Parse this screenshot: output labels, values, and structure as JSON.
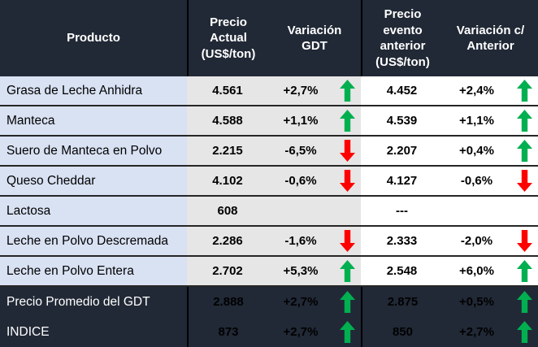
{
  "chart_data": {
    "type": "table",
    "columns": [
      "Producto",
      "Precio Actual (US$/ton)",
      "Variación GDT",
      "Precio evento anterior (US$/ton)",
      "Variación c/ Anterior"
    ],
    "rows": [
      {
        "product": "Grasa de Leche Anhidra",
        "precio_actual": "4.561",
        "variacion_gdt": "+2,7%",
        "gdt_arrow": "up",
        "precio_evento": "4.452",
        "variacion_anterior": "+2,4%",
        "anterior_arrow": "up"
      },
      {
        "product": "Manteca",
        "precio_actual": "4.588",
        "variacion_gdt": "+1,1%",
        "gdt_arrow": "up",
        "precio_evento": "4.539",
        "variacion_anterior": "+1,1%",
        "anterior_arrow": "up"
      },
      {
        "product": "Suero de Manteca en Polvo",
        "precio_actual": "2.215",
        "variacion_gdt": "-6,5%",
        "gdt_arrow": "down",
        "precio_evento": "2.207",
        "variacion_anterior": "+0,4%",
        "anterior_arrow": "up"
      },
      {
        "product": "Queso Cheddar",
        "precio_actual": "4.102",
        "variacion_gdt": "-0,6%",
        "gdt_arrow": "down",
        "precio_evento": "4.127",
        "variacion_anterior": "-0,6%",
        "anterior_arrow": "down"
      },
      {
        "product": "Lactosa",
        "precio_actual": "608",
        "variacion_gdt": "",
        "gdt_arrow": "none",
        "precio_evento": "---",
        "variacion_anterior": "",
        "anterior_arrow": "none"
      },
      {
        "product": "Leche en Polvo Descremada",
        "precio_actual": "2.286",
        "variacion_gdt": "-1,6%",
        "gdt_arrow": "down",
        "precio_evento": "2.333",
        "variacion_anterior": "-2,0%",
        "anterior_arrow": "down"
      },
      {
        "product": "Leche en Polvo Entera",
        "precio_actual": "2.702",
        "variacion_gdt": "+5,3%",
        "gdt_arrow": "up",
        "precio_evento": "2.548",
        "variacion_anterior": "+6,0%",
        "anterior_arrow": "up"
      }
    ],
    "summary_rows": [
      {
        "product": "Precio Promedio del GDT",
        "precio_actual": "2.888",
        "variacion_gdt": "+2,7%",
        "gdt_arrow": "up",
        "precio_evento": "2.875",
        "variacion_anterior": "+0,5%",
        "anterior_arrow": "up"
      },
      {
        "product": "INDICE",
        "precio_actual": "873",
        "variacion_gdt": "+2,7%",
        "gdt_arrow": "up",
        "precio_evento": "850",
        "variacion_anterior": "+2,7%",
        "anterior_arrow": "up"
      }
    ]
  },
  "header": {
    "producto": "Producto",
    "precio_actual": "Precio\nActual\n(US$/ton)",
    "variacion_gdt": "Variación\nGDT",
    "precio_evento": "Precio\nevento\nanterior\n(US$/ton)",
    "variacion_anterior": "Variación c/\nAnterior"
  },
  "colors": {
    "header_bg": "#212936",
    "footer_bg": "#212936",
    "row_product_bg": "#d9e2f3",
    "row_mid_bg": "#e7e6e6",
    "row_right_bg": "#ffffff",
    "up_arrow": "#00b050",
    "down_arrow": "#ff0000",
    "divider": "#000000",
    "row_border": "#262626"
  }
}
